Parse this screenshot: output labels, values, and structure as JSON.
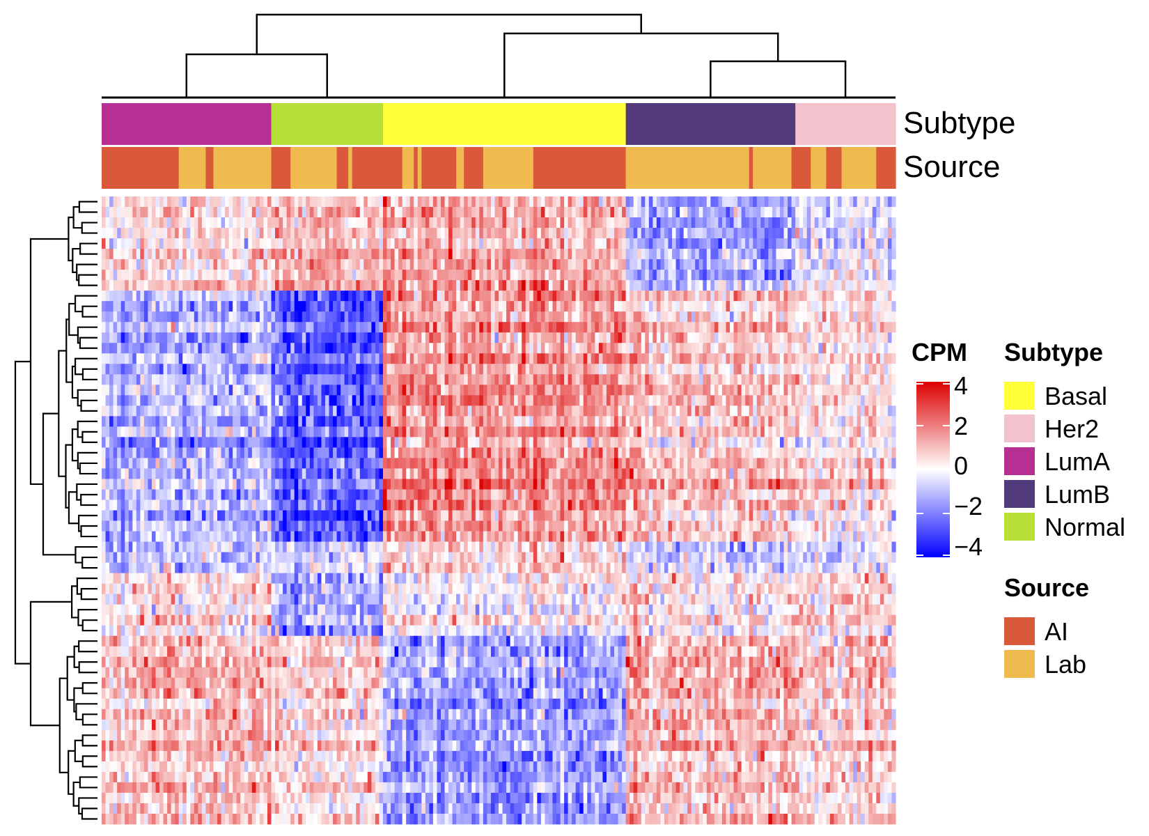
{
  "chart_data": {
    "type": "heatmap",
    "row_annotation_labels": [
      "Subtype",
      "Source"
    ],
    "colorbar": {
      "title": "CPM",
      "ticks": [
        4,
        2,
        0,
        -2,
        -4
      ],
      "tick_labels": [
        "4",
        "2",
        "0",
        "−2",
        "−4"
      ],
      "range": [
        -4,
        4
      ],
      "colors": [
        "#0000ff",
        "#ffffff",
        "#dd0000"
      ]
    },
    "subtype_legend": {
      "title": "Subtype",
      "items": [
        {
          "label": "Basal",
          "color": "#ffff3a"
        },
        {
          "label": "Her2",
          "color": "#f2c3cc"
        },
        {
          "label": "LumA",
          "color": "#b53092"
        },
        {
          "label": "LumB",
          "color": "#533a7a"
        },
        {
          "label": "Normal",
          "color": "#b6df38"
        }
      ]
    },
    "source_legend": {
      "title": "Source",
      "items": [
        {
          "label": "AI",
          "color": "#d9593a"
        },
        {
          "label": "Lab",
          "color": "#efbb50"
        }
      ]
    },
    "column_groups": [
      {
        "subtype": "LumA",
        "n_columns": 44
      },
      {
        "subtype": "Normal",
        "n_columns": 29
      },
      {
        "subtype": "Basal",
        "n_columns": 63
      },
      {
        "subtype": "LumB",
        "n_columns": 44
      },
      {
        "subtype": "Her2",
        "n_columns": 26
      }
    ],
    "row_blocks": [
      {
        "name": "block-1",
        "n_rows": 9,
        "mean_by_group": {
          "LumA": 0.4,
          "Normal": 1.0,
          "Basal": 1.2,
          "LumB": -1.5,
          "Her2": -0.4
        }
      },
      {
        "name": "block-2",
        "n_rows": 24,
        "mean_by_group": {
          "LumA": -1.2,
          "Normal": -2.5,
          "Basal": 1.6,
          "LumB": 0.8,
          "Her2": 0.4
        }
      },
      {
        "name": "block-3",
        "n_rows": 3,
        "mean_by_group": {
          "LumA": -0.8,
          "Normal": -0.6,
          "Basal": 0.6,
          "LumB": -0.8,
          "Her2": -0.5
        }
      },
      {
        "name": "block-4",
        "n_rows": 6,
        "mean_by_group": {
          "LumA": 0.6,
          "Normal": -1.3,
          "Basal": 0.1,
          "LumB": 0.4,
          "Her2": 0.8
        }
      },
      {
        "name": "block-5",
        "n_rows": 18,
        "mean_by_group": {
          "LumA": 1.0,
          "Normal": 0.5,
          "Basal": -1.6,
          "LumB": 1.0,
          "Her2": 0.7
        }
      }
    ]
  }
}
